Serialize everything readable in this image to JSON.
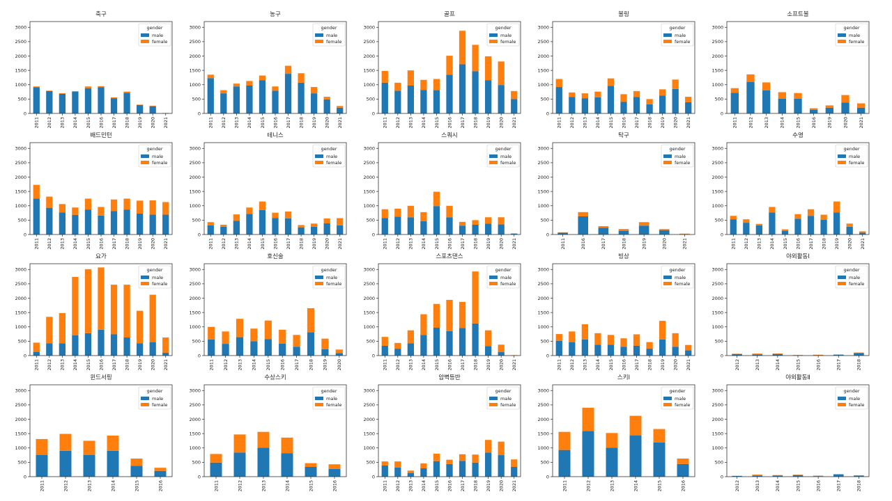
{
  "figure": {
    "legend_title": "gender",
    "legend_position": "upper-right",
    "series_colors": {
      "male": "#1f77b4",
      "female": "#ff7f0e"
    }
  },
  "chart_data": [
    {
      "type": "bar",
      "stacked": true,
      "title": "축구",
      "xlabel": "",
      "ylabel": "",
      "ylim": [
        0,
        3200
      ],
      "yticks": [
        0,
        500,
        1000,
        1500,
        2000,
        2500,
        3000
      ],
      "categories": [
        "2011",
        "2012",
        "2013",
        "2014",
        "2015",
        "2016",
        "2017",
        "2018",
        "2019",
        "2020",
        "2021"
      ],
      "series": [
        {
          "name": "male",
          "values": [
            910,
            780,
            680,
            760,
            880,
            910,
            530,
            720,
            290,
            250,
            10
          ]
        },
        {
          "name": "female",
          "values": [
            30,
            15,
            25,
            15,
            60,
            40,
            30,
            40,
            15,
            20,
            5
          ]
        }
      ]
    },
    {
      "type": "bar",
      "stacked": true,
      "title": "농구",
      "xlabel": "",
      "ylabel": "",
      "ylim": [
        0,
        3200
      ],
      "yticks": [
        0,
        500,
        1000,
        1500,
        2000,
        2500,
        3000
      ],
      "categories": [
        "2011",
        "2012",
        "2013",
        "2014",
        "2015",
        "2016",
        "2017",
        "2018",
        "2019",
        "2020",
        "2021"
      ],
      "series": [
        {
          "name": "male",
          "values": [
            1230,
            700,
            940,
            970,
            1160,
            790,
            1380,
            1070,
            700,
            490,
            200
          ]
        },
        {
          "name": "female",
          "values": [
            120,
            110,
            100,
            160,
            160,
            150,
            280,
            330,
            220,
            90,
            60
          ]
        }
      ]
    },
    {
      "type": "bar",
      "stacked": true,
      "title": "골프",
      "xlabel": "",
      "ylabel": "",
      "ylim": [
        0,
        3200
      ],
      "yticks": [
        0,
        500,
        1000,
        1500,
        2000,
        2500,
        3000
      ],
      "categories": [
        "2011",
        "2012",
        "2013",
        "2014",
        "2015",
        "2016",
        "2017",
        "2018",
        "2019",
        "2020",
        "2021"
      ],
      "series": [
        {
          "name": "male",
          "values": [
            1070,
            790,
            970,
            820,
            810,
            1350,
            1710,
            1470,
            1160,
            990,
            500
          ]
        },
        {
          "name": "female",
          "values": [
            410,
            280,
            530,
            350,
            390,
            660,
            1170,
            920,
            830,
            820,
            280
          ]
        }
      ]
    },
    {
      "type": "bar",
      "stacked": true,
      "title": "볼링",
      "xlabel": "",
      "ylabel": "",
      "ylim": [
        0,
        3200
      ],
      "yticks": [
        0,
        500,
        1000,
        1500,
        2000,
        2500,
        3000
      ],
      "categories": [
        "2011",
        "2012",
        "2013",
        "2014",
        "2015",
        "2016",
        "2017",
        "2018",
        "2019",
        "2020",
        "2021"
      ],
      "series": [
        {
          "name": "male",
          "values": [
            920,
            570,
            530,
            560,
            960,
            400,
            570,
            320,
            620,
            850,
            390
          ]
        },
        {
          "name": "female",
          "values": [
            280,
            160,
            170,
            200,
            260,
            270,
            210,
            180,
            220,
            330,
            190
          ]
        }
      ]
    },
    {
      "type": "bar",
      "stacked": true,
      "title": "소프트볼",
      "xlabel": "",
      "ylabel": "",
      "ylim": [
        0,
        3200
      ],
      "yticks": [
        0,
        500,
        1000,
        1500,
        2000,
        2500,
        3000
      ],
      "categories": [
        "2011",
        "2012",
        "2013",
        "2014",
        "2015",
        "2016",
        "2019",
        "2020",
        "2021"
      ],
      "series": [
        {
          "name": "male",
          "values": [
            720,
            1100,
            800,
            510,
            510,
            130,
            200,
            380,
            200
          ]
        },
        {
          "name": "female",
          "values": [
            160,
            260,
            280,
            230,
            200,
            50,
            80,
            260,
            150
          ]
        }
      ]
    },
    {
      "type": "bar",
      "stacked": true,
      "title": "배드민턴",
      "xlabel": "",
      "ylabel": "",
      "ylim": [
        0,
        3200
      ],
      "yticks": [
        0,
        500,
        1000,
        1500,
        2000,
        2500,
        3000
      ],
      "categories": [
        "2011",
        "2012",
        "2013",
        "2014",
        "2015",
        "2016",
        "2017",
        "2018",
        "2019",
        "2020",
        "2021"
      ],
      "series": [
        {
          "name": "male",
          "values": [
            1250,
            930,
            770,
            680,
            870,
            660,
            820,
            870,
            730,
            690,
            690
          ]
        },
        {
          "name": "female",
          "values": [
            480,
            390,
            290,
            260,
            380,
            300,
            400,
            380,
            450,
            500,
            440
          ]
        }
      ]
    },
    {
      "type": "bar",
      "stacked": true,
      "title": "테니스",
      "xlabel": "",
      "ylabel": "",
      "ylim": [
        0,
        3200
      ],
      "yticks": [
        0,
        500,
        1000,
        1500,
        2000,
        2500,
        3000
      ],
      "categories": [
        "2011",
        "2012",
        "2013",
        "2014",
        "2015",
        "2016",
        "2017",
        "2018",
        "2019",
        "2020",
        "2021"
      ],
      "series": [
        {
          "name": "male",
          "values": [
            320,
            270,
            480,
            720,
            850,
            570,
            560,
            250,
            270,
            390,
            320
          ]
        },
        {
          "name": "female",
          "values": [
            110,
            70,
            220,
            220,
            300,
            190,
            240,
            80,
            110,
            170,
            250
          ]
        }
      ]
    },
    {
      "type": "bar",
      "stacked": true,
      "title": "스쿼시",
      "xlabel": "",
      "ylabel": "",
      "ylim": [
        0,
        3200
      ],
      "yticks": [
        0,
        500,
        1000,
        1500,
        2000,
        2500,
        3000
      ],
      "categories": [
        "2011",
        "2012",
        "2013",
        "2014",
        "2015",
        "2016",
        "2017",
        "2018",
        "2019",
        "2020",
        "2021"
      ],
      "series": [
        {
          "name": "male",
          "values": [
            570,
            620,
            600,
            460,
            990,
            600,
            310,
            340,
            380,
            350,
            25
          ]
        },
        {
          "name": "female",
          "values": [
            310,
            280,
            400,
            320,
            500,
            400,
            130,
            160,
            220,
            250,
            15
          ]
        }
      ]
    },
    {
      "type": "bar",
      "stacked": true,
      "title": "탁구",
      "xlabel": "",
      "ylabel": "",
      "ylim": [
        0,
        3200
      ],
      "yticks": [
        0,
        500,
        1000,
        1500,
        2000,
        2500,
        3000
      ],
      "categories": [
        "2011",
        "2016",
        "2017",
        "2018",
        "2019",
        "2020",
        "2021"
      ],
      "series": [
        {
          "name": "male",
          "values": [
            60,
            630,
            230,
            130,
            310,
            150,
            15
          ]
        },
        {
          "name": "female",
          "values": [
            15,
            150,
            60,
            60,
            120,
            40,
            15
          ]
        }
      ]
    },
    {
      "type": "bar",
      "stacked": true,
      "title": "수영",
      "xlabel": "",
      "ylabel": "",
      "ylim": [
        0,
        3200
      ],
      "yticks": [
        0,
        500,
        1000,
        1500,
        2000,
        2500,
        3000
      ],
      "categories": [
        "2011",
        "2012",
        "2013",
        "2014",
        "2015",
        "2016",
        "2017",
        "2018",
        "2019",
        "2020",
        "2021"
      ],
      "series": [
        {
          "name": "male",
          "values": [
            530,
            410,
            320,
            770,
            130,
            550,
            650,
            510,
            770,
            270,
            60
          ]
        },
        {
          "name": "female",
          "values": [
            120,
            120,
            50,
            190,
            50,
            160,
            230,
            180,
            380,
            110,
            50
          ]
        }
      ]
    },
    {
      "type": "bar",
      "stacked": true,
      "title": "요가",
      "xlabel": "",
      "ylabel": "",
      "ylim": [
        0,
        3200
      ],
      "yticks": [
        0,
        500,
        1000,
        1500,
        2000,
        2500,
        3000
      ],
      "categories": [
        "2011",
        "2012",
        "2013",
        "2014",
        "2015",
        "2016",
        "2017",
        "2018",
        "2019",
        "2020",
        "2021"
      ],
      "series": [
        {
          "name": "male",
          "values": [
            130,
            430,
            430,
            710,
            780,
            900,
            740,
            630,
            430,
            470,
            100
          ]
        },
        {
          "name": "female",
          "values": [
            320,
            920,
            1050,
            2030,
            2230,
            2170,
            1730,
            1840,
            1130,
            1650,
            530
          ]
        }
      ]
    },
    {
      "type": "bar",
      "stacked": true,
      "title": "호신술",
      "xlabel": "",
      "ylabel": "",
      "ylim": [
        0,
        3200
      ],
      "yticks": [
        0,
        500,
        1000,
        1500,
        2000,
        2500,
        3000
      ],
      "categories": [
        "2011",
        "2012",
        "2013",
        "2014",
        "2015",
        "2016",
        "2017",
        "2018",
        "2019",
        "2020"
      ],
      "series": [
        {
          "name": "male",
          "values": [
            560,
            410,
            640,
            500,
            570,
            420,
            310,
            810,
            220,
            90
          ]
        },
        {
          "name": "female",
          "values": [
            440,
            430,
            640,
            440,
            650,
            480,
            410,
            840,
            370,
            120
          ]
        }
      ]
    },
    {
      "type": "bar",
      "stacked": true,
      "title": "스포츠댄스",
      "xlabel": "",
      "ylabel": "",
      "ylim": [
        0,
        3200
      ],
      "yticks": [
        0,
        500,
        1000,
        1500,
        2000,
        2500,
        3000
      ],
      "categories": [
        "2011",
        "2012",
        "2013",
        "2014",
        "2015",
        "2016",
        "2017",
        "2018",
        "2019",
        "2020",
        "2021"
      ],
      "series": [
        {
          "name": "male",
          "values": [
            340,
            240,
            430,
            720,
            970,
            850,
            960,
            1120,
            330,
            120,
            5
          ]
        },
        {
          "name": "female",
          "values": [
            310,
            200,
            450,
            720,
            830,
            1090,
            910,
            1810,
            550,
            260,
            10
          ]
        }
      ]
    },
    {
      "type": "bar",
      "stacked": true,
      "title": "빙상",
      "xlabel": "",
      "ylabel": "",
      "ylim": [
        0,
        3200
      ],
      "yticks": [
        0,
        500,
        1000,
        1500,
        2000,
        2500,
        3000
      ],
      "categories": [
        "2011",
        "2012",
        "2013",
        "2014",
        "2015",
        "2016",
        "2017",
        "2018",
        "2019",
        "2020",
        "2021"
      ],
      "series": [
        {
          "name": "male",
          "values": [
            510,
            470,
            560,
            380,
            380,
            310,
            340,
            240,
            560,
            310,
            180
          ]
        },
        {
          "name": "female",
          "values": [
            240,
            370,
            530,
            400,
            340,
            290,
            400,
            230,
            650,
            470,
            190
          ]
        }
      ]
    },
    {
      "type": "bar",
      "stacked": true,
      "title": "야외활동Ⅰ",
      "xlabel": "",
      "ylabel": "",
      "ylim": [
        0,
        3200
      ],
      "yticks": [
        0,
        500,
        1000,
        1500,
        2000,
        2500,
        3000
      ],
      "categories": [
        "2012",
        "2013",
        "2014",
        "2015",
        "2016",
        "2017",
        "2018"
      ],
      "series": [
        {
          "name": "male",
          "values": [
            55,
            40,
            55,
            15,
            10,
            25,
            85
          ]
        },
        {
          "name": "female",
          "values": [
            10,
            30,
            20,
            5,
            20,
            15,
            20
          ]
        }
      ]
    },
    {
      "type": "bar",
      "stacked": true,
      "title": "윈드서핑",
      "xlabel": "",
      "ylabel": "",
      "ylim": [
        0,
        3200
      ],
      "yticks": [
        0,
        500,
        1000,
        1500,
        2000,
        2500,
        3000
      ],
      "categories": [
        "2011",
        "2012",
        "2013",
        "2014",
        "2015",
        "2016"
      ],
      "series": [
        {
          "name": "male",
          "values": [
            760,
            900,
            760,
            900,
            380,
            200
          ]
        },
        {
          "name": "female",
          "values": [
            550,
            590,
            490,
            530,
            250,
            110
          ]
        }
      ]
    },
    {
      "type": "bar",
      "stacked": true,
      "title": "수상스키",
      "xlabel": "",
      "ylabel": "",
      "ylim": [
        0,
        3200
      ],
      "yticks": [
        0,
        500,
        1000,
        1500,
        2000,
        2500,
        3000
      ],
      "categories": [
        "2011",
        "2012",
        "2013",
        "2014",
        "2015",
        "2016"
      ],
      "series": [
        {
          "name": "male",
          "values": [
            490,
            840,
            1010,
            820,
            340,
            270
          ]
        },
        {
          "name": "female",
          "values": [
            300,
            630,
            550,
            540,
            130,
            160
          ]
        }
      ]
    },
    {
      "type": "bar",
      "stacked": true,
      "title": "암벽등반",
      "xlabel": "",
      "ylabel": "",
      "ylim": [
        0,
        3200
      ],
      "yticks": [
        0,
        500,
        1000,
        1500,
        2000,
        2500,
        3000
      ],
      "categories": [
        "2011",
        "2012",
        "2013",
        "2014",
        "2015",
        "2016",
        "2017",
        "2018",
        "2019",
        "2020",
        "2021"
      ],
      "series": [
        {
          "name": "male",
          "values": [
            390,
            320,
            130,
            290,
            540,
            440,
            550,
            490,
            840,
            750,
            340
          ]
        },
        {
          "name": "female",
          "values": [
            140,
            210,
            80,
            170,
            260,
            150,
            230,
            280,
            440,
            470,
            260
          ]
        }
      ]
    },
    {
      "type": "bar",
      "stacked": true,
      "title": "스키Ⅰ",
      "xlabel": "",
      "ylabel": "",
      "ylim": [
        0,
        3200
      ],
      "yticks": [
        0,
        500,
        1000,
        1500,
        2000,
        2500,
        3000
      ],
      "categories": [
        "2011",
        "2012",
        "2013",
        "2014",
        "2015",
        "2016"
      ],
      "series": [
        {
          "name": "male",
          "values": [
            930,
            1590,
            1010,
            1440,
            1190,
            440
          ]
        },
        {
          "name": "female",
          "values": [
            630,
            810,
            510,
            680,
            470,
            190
          ]
        }
      ]
    },
    {
      "type": "bar",
      "stacked": true,
      "title": "야외활동Ⅱ",
      "xlabel": "",
      "ylabel": "",
      "ylim": [
        0,
        3200
      ],
      "yticks": [
        0,
        500,
        1000,
        1500,
        2000,
        2500,
        3000
      ],
      "categories": [
        "2012",
        "2013",
        "2014",
        "2015",
        "2016",
        "2017",
        "2018"
      ],
      "series": [
        {
          "name": "male",
          "values": [
            25,
            40,
            40,
            55,
            20,
            75,
            40
          ]
        },
        {
          "name": "female",
          "values": [
            5,
            30,
            15,
            15,
            15,
            15,
            5
          ]
        }
      ]
    }
  ]
}
